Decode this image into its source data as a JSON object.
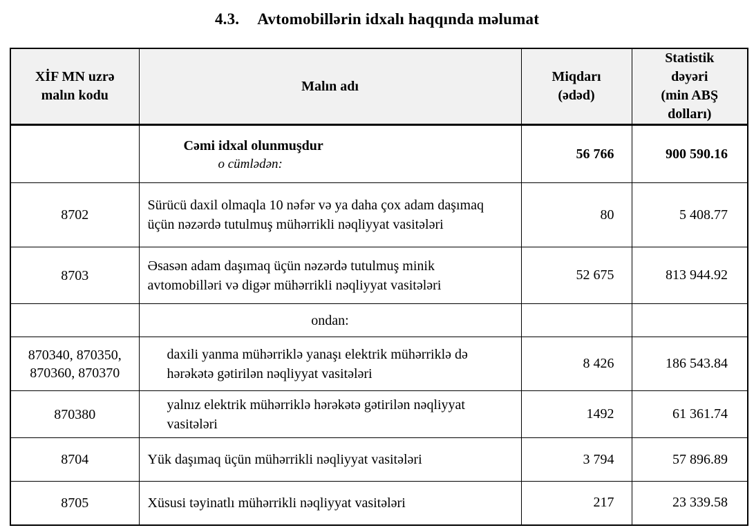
{
  "page": {
    "title_number": "4.3.",
    "title_text": "Avtomobillərin idxalı haqqında məlumat"
  },
  "table": {
    "headers": [
      "XİF MN uzrə\nmalın kodu",
      "Malın adı",
      "Miqdarı\n(ədəd)",
      "Statistik\ndəyəri\n(min ABŞ\ndolları)"
    ],
    "rows": [
      {
        "code": "",
        "name": "Cəmi idxal olunmuşdur",
        "name_sub": "o cümlədən:",
        "qty": "56 766",
        "value": "900 590.16",
        "variant": "total"
      },
      {
        "code": "8702",
        "name": "Sürücü daxil olmaqla 10 nəfər və ya daha çox adam daşımaq üçün nəzərdə tutulmuş mühərrikli nəqliyyat vasitələri",
        "name_sub": "",
        "qty": "80",
        "value": "5 408.77",
        "variant": "normal"
      },
      {
        "code": "8703",
        "name": "Əsasən adam daşımaq üçün nəzərdə tutulmuş minik avtomobilləri və digər mühərrikli nəqliyyat vasitələri",
        "name_sub": "",
        "qty": "52 675",
        "value": "813 944.92",
        "variant": "normal"
      },
      {
        "code": "",
        "name": "ondan:",
        "name_sub": "",
        "qty": "",
        "value": "",
        "variant": "subheader"
      },
      {
        "code": "870340, 870350, 870360, 870370",
        "name": "daxili yanma mühərriklə yanaşı elektrik mühərriklə də hərəkətə gətirilən nəqliyyat vasitələri",
        "name_sub": "",
        "qty": "8 426",
        "value": "186 543.84",
        "variant": "indented"
      },
      {
        "code": "870380",
        "name": "yalnız elektrik mühərriklə hərəkətə gətirilən nəqliyyat vasitələri",
        "name_sub": "",
        "qty": "1492",
        "value": "61 361.74",
        "variant": "indented"
      },
      {
        "code": "8704",
        "name": "Yük daşımaq üçün mühərrikli nəqliyyat vasitələri",
        "name_sub": "",
        "qty": "3 794",
        "value": "57 896.89",
        "variant": "normal"
      },
      {
        "code": "8705",
        "name": "Xüsusi təyinatlı mühərrikli nəqliyyat vasitələri",
        "name_sub": "",
        "qty": "217",
        "value": "23 339.58",
        "variant": "normal"
      }
    ]
  },
  "colors": {
    "header_bg": "#f1f1f1",
    "border": "#000000",
    "text": "#000000"
  }
}
